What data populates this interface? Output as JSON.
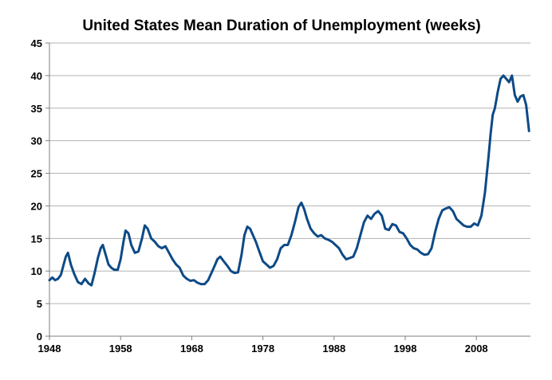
{
  "chart_data": {
    "type": "line",
    "title": "United States Mean Duration of Unemployment (weeks)",
    "xlabel": "",
    "ylabel": "",
    "xlim": [
      1948,
      2015.6
    ],
    "ylim": [
      0,
      45
    ],
    "x_ticks": [
      "1948",
      "1958",
      "1968",
      "1978",
      "1988",
      "1998",
      "2008"
    ],
    "y_ticks": [
      "0",
      "5",
      "10",
      "15",
      "20",
      "25",
      "30",
      "35",
      "40",
      "45"
    ],
    "grid": "horizontal",
    "legend": "none",
    "colors": {
      "line": "#0d4a86",
      "grid": "#b3b3b3",
      "axis": "#7f7f7f"
    },
    "series": [
      {
        "x": [
          1948.0,
          1948.4,
          1948.8,
          1949.2,
          1949.6,
          1950.0,
          1950.3,
          1950.6,
          1951.0,
          1951.5,
          1952.0,
          1952.5,
          1953.0,
          1953.5,
          1953.9,
          1954.3,
          1954.8,
          1955.2,
          1955.5,
          1955.9,
          1956.3,
          1956.7,
          1957.1,
          1957.6,
          1958.0,
          1958.4,
          1958.7,
          1959.1,
          1959.5,
          1960.0,
          1960.5,
          1961.0,
          1961.4,
          1961.8,
          1962.3,
          1962.8,
          1963.3,
          1963.8,
          1964.3,
          1964.8,
          1965.3,
          1965.8,
          1966.3,
          1966.8,
          1967.3,
          1967.8,
          1968.3,
          1968.8,
          1969.3,
          1969.8,
          1970.3,
          1970.8,
          1971.3,
          1971.6,
          1972.0,
          1972.5,
          1973.0,
          1973.5,
          1974.0,
          1974.5,
          1975.0,
          1975.4,
          1975.8,
          1976.2,
          1976.6,
          1977.0,
          1977.5,
          1978.0,
          1978.5,
          1979.0,
          1979.5,
          1980.0,
          1980.5,
          1981.0,
          1981.5,
          1982.0,
          1982.5,
          1983.0,
          1983.4,
          1983.8,
          1984.2,
          1984.7,
          1985.2,
          1985.7,
          1986.2,
          1986.7,
          1987.2,
          1987.7,
          1988.2,
          1988.7,
          1989.2,
          1989.7,
          1990.2,
          1990.7,
          1991.2,
          1991.7,
          1992.2,
          1992.7,
          1993.2,
          1993.7,
          1994.2,
          1994.7,
          1995.2,
          1995.7,
          1996.2,
          1996.7,
          1997.2,
          1997.7,
          1998.2,
          1998.7,
          1999.2,
          1999.7,
          2000.2,
          2000.7,
          2001.2,
          2001.7,
          2002.2,
          2002.7,
          2003.2,
          2003.7,
          2004.2,
          2004.7,
          2005.2,
          2005.7,
          2006.2,
          2006.7,
          2007.2,
          2007.7,
          2008.2,
          2008.7,
          2009.2,
          2009.7,
          2010.0,
          2010.3,
          2010.6,
          2011.0,
          2011.4,
          2011.8,
          2012.2,
          2012.6,
          2013.0,
          2013.4,
          2013.8,
          2014.2,
          2014.6,
          2015.0,
          2015.4
        ],
        "values": [
          8.6,
          9.0,
          8.6,
          8.8,
          9.4,
          11.0,
          12.2,
          12.8,
          11.0,
          9.5,
          8.3,
          8.0,
          8.8,
          8.1,
          7.8,
          9.5,
          12.0,
          13.5,
          14.0,
          12.5,
          11.0,
          10.5,
          10.2,
          10.2,
          11.8,
          14.5,
          16.2,
          15.8,
          14.0,
          12.8,
          13.0,
          15.0,
          17.0,
          16.5,
          15.0,
          14.5,
          13.8,
          13.5,
          13.8,
          12.8,
          11.8,
          11.0,
          10.5,
          9.3,
          8.8,
          8.5,
          8.6,
          8.2,
          8.0,
          8.0,
          8.6,
          9.8,
          11.0,
          11.8,
          12.2,
          11.5,
          10.8,
          10.0,
          9.7,
          9.8,
          12.5,
          15.5,
          16.8,
          16.5,
          15.5,
          14.5,
          13.0,
          11.5,
          11.0,
          10.5,
          10.8,
          11.8,
          13.5,
          14.0,
          14.0,
          15.5,
          17.5,
          19.8,
          20.5,
          19.5,
          18.0,
          16.5,
          15.8,
          15.3,
          15.5,
          15.0,
          14.8,
          14.5,
          14.0,
          13.5,
          12.5,
          11.8,
          12.0,
          12.2,
          13.5,
          15.5,
          17.5,
          18.5,
          18.0,
          18.8,
          19.2,
          18.5,
          16.5,
          16.3,
          17.2,
          17.0,
          16.0,
          15.8,
          15.0,
          14.0,
          13.5,
          13.3,
          12.8,
          12.5,
          12.6,
          13.5,
          16.0,
          18.0,
          19.3,
          19.6,
          19.8,
          19.2,
          18.0,
          17.5,
          17.0,
          16.8,
          16.8,
          17.3,
          17.0,
          18.5,
          22.0,
          27.5,
          31.0,
          34.0,
          35.0,
          37.5,
          39.5,
          40.0,
          39.5,
          39.0,
          40.0,
          37.0,
          36.0,
          36.8,
          37.0,
          35.5,
          31.5
        ]
      }
    ]
  }
}
